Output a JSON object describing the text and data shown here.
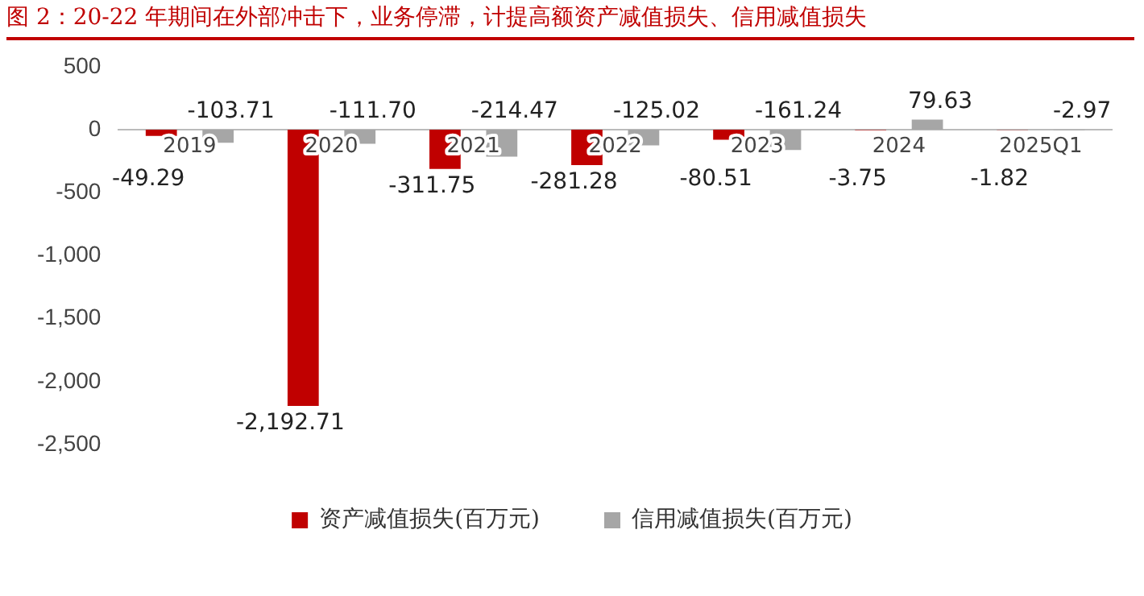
{
  "chart_data": {
    "type": "bar",
    "title": "图 2：20-22 年期间在外部冲击下，业务停滞，计提高额资产减值损失、信用减值损失",
    "categories": [
      "2019",
      "2020",
      "2021",
      "2022",
      "2023",
      "2024",
      "2025Q1"
    ],
    "series": [
      {
        "name": "资产减值损失(百万元)",
        "color": "#c00000",
        "values": [
          -49.29,
          -2192.71,
          -311.75,
          -281.28,
          -80.51,
          -3.75,
          -1.82
        ],
        "value_labels": [
          "-49.29",
          "-2,192.71",
          "-311.75",
          "-281.28",
          "-80.51",
          "-3.75",
          "-1.82"
        ]
      },
      {
        "name": "信用减值损失(百万元)",
        "color": "#a6a6a6",
        "values": [
          -103.71,
          -111.7,
          -214.47,
          -125.02,
          -161.24,
          79.63,
          -2.97
        ],
        "value_labels": [
          "-103.71",
          "-111.70",
          "-214.47",
          "-125.02",
          "-161.24",
          "79.63",
          "-2.97"
        ]
      }
    ],
    "ylim": [
      -2500,
      500
    ],
    "yticks": [
      {
        "value": -2500,
        "label": "-2,500"
      },
      {
        "value": -2000,
        "label": "-2,000"
      },
      {
        "value": -1500,
        "label": "-1,500"
      },
      {
        "value": -1000,
        "label": "-1,000"
      },
      -500,
      0,
      500
    ],
    "grid": false,
    "legend": "bottom"
  }
}
